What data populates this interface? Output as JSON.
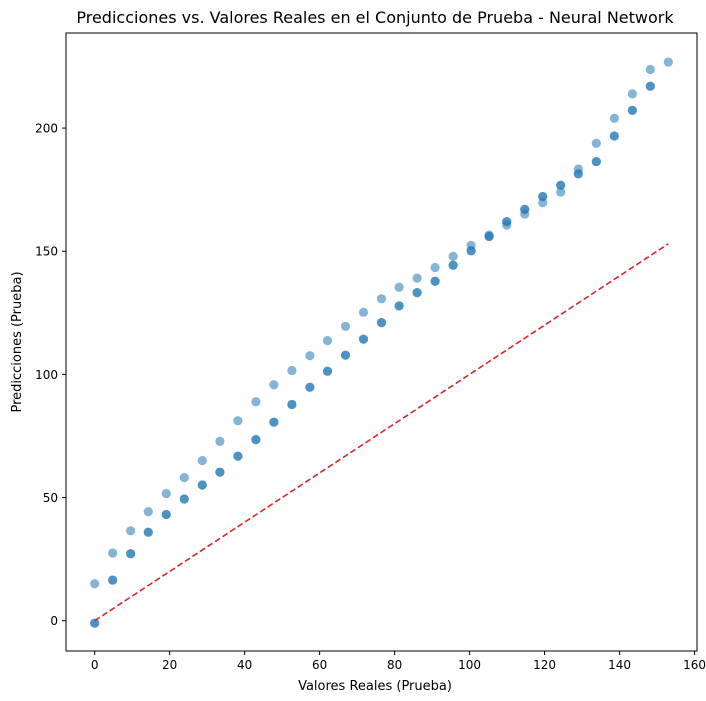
{
  "chart_data": {
    "type": "scatter",
    "title": "Predicciones vs. Valores Reales en el Conjunto de Prueba - Neural Network",
    "xlabel": "Valores Reales (Prueba)",
    "ylabel": "Predicciones (Prueba)",
    "xlim": [
      -7.65,
      160.65
    ],
    "ylim": [
      -12.3,
      238.6
    ],
    "x_ticks": [
      0,
      20,
      40,
      60,
      80,
      100,
      120,
      140,
      160
    ],
    "y_ticks": [
      0,
      50,
      100,
      150,
      200
    ],
    "grid": false,
    "point_color": "#1f77b4",
    "point_alpha": 0.55,
    "series": [
      {
        "values": [
          [
            0,
            -1
          ],
          [
            4.8,
            16.5
          ],
          [
            9.6,
            27.2
          ],
          [
            14.3,
            35.9
          ],
          [
            19.1,
            43.1
          ],
          [
            23.9,
            49.4
          ],
          [
            28.7,
            55.1
          ],
          [
            33.4,
            60.3
          ],
          [
            38.2,
            66.8
          ],
          [
            43.0,
            73.5
          ],
          [
            47.8,
            80.6
          ],
          [
            52.6,
            87.8
          ],
          [
            57.4,
            94.8
          ],
          [
            62.1,
            101.3
          ],
          [
            66.9,
            107.8
          ],
          [
            71.7,
            114.3
          ],
          [
            76.5,
            121.0
          ],
          [
            81.2,
            127.8
          ],
          [
            86.0,
            133.2
          ],
          [
            90.8,
            137.8
          ],
          [
            95.6,
            144.3
          ],
          [
            100.4,
            150.2
          ],
          [
            105.2,
            156.0
          ],
          [
            109.9,
            162.0
          ],
          [
            114.7,
            167.0
          ],
          [
            119.5,
            172.2
          ],
          [
            124.3,
            176.8
          ],
          [
            129.0,
            181.4
          ],
          [
            133.8,
            186.4
          ],
          [
            138.6,
            196.8
          ],
          [
            143.4,
            207.2
          ],
          [
            148.2,
            217.0
          ],
          [
            0,
            -1
          ],
          [
            4.8,
            16.5
          ],
          [
            9.6,
            27.2
          ],
          [
            14.3,
            35.9
          ],
          [
            19.1,
            43.1
          ],
          [
            23.9,
            49.4
          ],
          [
            28.7,
            55.1
          ],
          [
            33.4,
            60.3
          ],
          [
            38.2,
            66.8
          ],
          [
            43.0,
            73.5
          ],
          [
            47.8,
            80.6
          ],
          [
            52.6,
            87.8
          ],
          [
            57.4,
            94.8
          ],
          [
            62.1,
            101.3
          ],
          [
            66.9,
            107.8
          ],
          [
            71.7,
            114.3
          ],
          [
            76.5,
            121.0
          ],
          [
            81.2,
            127.8
          ],
          [
            86.0,
            133.2
          ],
          [
            90.8,
            137.8
          ],
          [
            95.6,
            144.3
          ],
          [
            100.4,
            150.2
          ],
          [
            105.2,
            156.0
          ],
          [
            109.9,
            162.0
          ],
          [
            114.7,
            167.0
          ],
          [
            119.5,
            172.2
          ],
          [
            124.3,
            176.8
          ],
          [
            129.0,
            181.4
          ],
          [
            133.8,
            186.4
          ],
          [
            138.6,
            196.8
          ],
          [
            143.4,
            207.2
          ],
          [
            148.2,
            217.0
          ],
          [
            0,
            15
          ],
          [
            4.8,
            27.5
          ],
          [
            9.6,
            36.5
          ],
          [
            14.3,
            44.3
          ],
          [
            19.1,
            51.6
          ],
          [
            23.9,
            58.1
          ],
          [
            28.7,
            65.0
          ],
          [
            33.4,
            72.8
          ],
          [
            38.2,
            81.2
          ],
          [
            43.0,
            88.9
          ],
          [
            47.8,
            95.8
          ],
          [
            52.6,
            101.6
          ],
          [
            57.4,
            107.6
          ],
          [
            62.1,
            113.7
          ],
          [
            66.9,
            119.5
          ],
          [
            71.7,
            125.2
          ],
          [
            76.5,
            130.7
          ],
          [
            81.2,
            135.4
          ],
          [
            86.0,
            139.1
          ],
          [
            90.8,
            143.4
          ],
          [
            95.6,
            147.9
          ],
          [
            100.4,
            152.4
          ],
          [
            105.2,
            156.6
          ],
          [
            109.9,
            160.6
          ],
          [
            114.7,
            165.1
          ],
          [
            119.5,
            169.7
          ],
          [
            124.3,
            174.0
          ],
          [
            129.0,
            183.4
          ],
          [
            133.8,
            193.8
          ],
          [
            138.6,
            204.0
          ],
          [
            143.4,
            213.9
          ],
          [
            148.2,
            223.8
          ],
          [
            153.0,
            226.8
          ]
        ]
      }
    ],
    "reference_line": {
      "from": [
        0,
        0
      ],
      "to": [
        153,
        153
      ],
      "color": "#d62728",
      "style": "dashed"
    }
  }
}
